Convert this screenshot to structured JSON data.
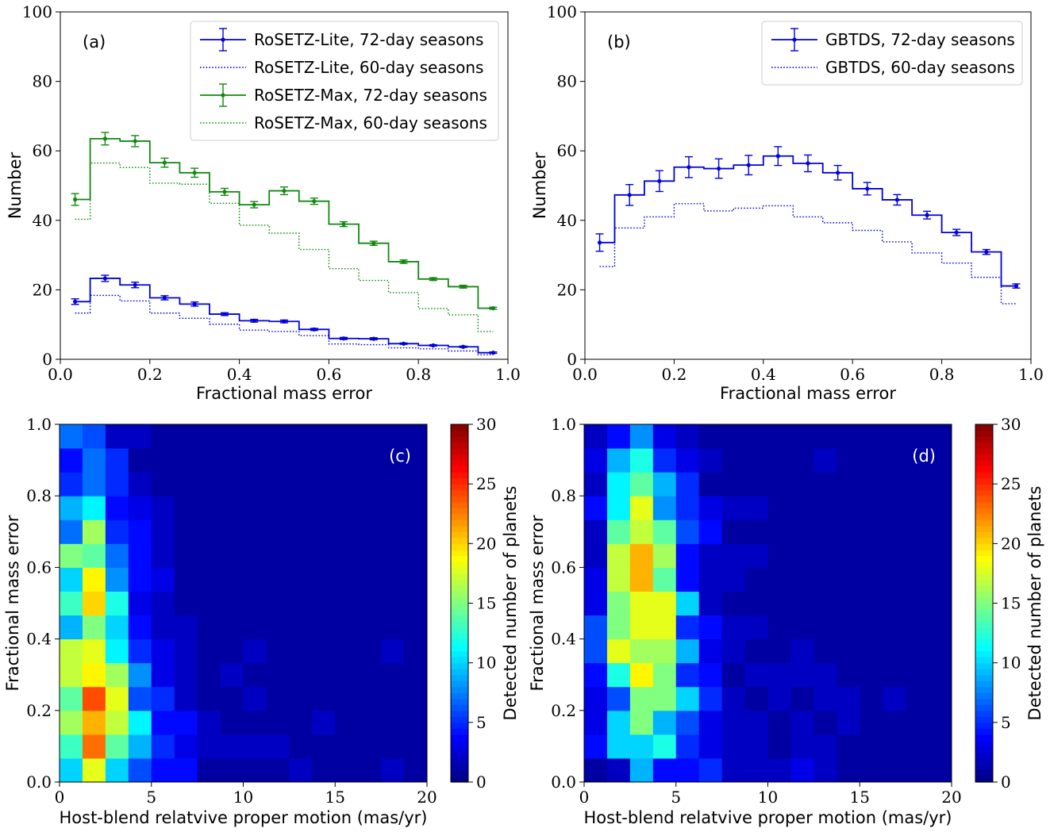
{
  "chart_data": [
    {
      "panel": "(a)",
      "type": "line",
      "step": true,
      "xlabel": "Fractional mass error",
      "ylabel": "Number",
      "xlim": [
        0,
        1
      ],
      "ylim": [
        0,
        100
      ],
      "xticks": [
        "0.0",
        "0.2",
        "0.4",
        "0.6",
        "0.8",
        "1.0"
      ],
      "yticks": [
        "0",
        "20",
        "40",
        "60",
        "80",
        "100"
      ],
      "legend_position": "top-right",
      "grid": false,
      "bin_edges": [
        0.0,
        0.0667,
        0.1333,
        0.2,
        0.2667,
        0.3333,
        0.4,
        0.4667,
        0.5333,
        0.6,
        0.6667,
        0.7333,
        0.8,
        0.8667,
        0.9333,
        1.0
      ],
      "x": [
        0.033,
        0.1,
        0.167,
        0.233,
        0.3,
        0.367,
        0.433,
        0.5,
        0.567,
        0.633,
        0.7,
        0.767,
        0.833,
        0.9,
        0.967
      ],
      "series": [
        {
          "name": "RoSETZ-Lite, 72-day seasons",
          "color": "#0000dd",
          "style": "solid",
          "errorbars": true,
          "values": [
            16.6,
            23.3,
            21.4,
            17.7,
            15.9,
            13.0,
            11.1,
            10.9,
            8.6,
            6.0,
            5.9,
            4.5,
            4.0,
            3.6,
            1.9
          ],
          "errors": [
            0.8,
            0.9,
            0.8,
            0.6,
            0.6,
            0.4,
            0.4,
            0.4,
            0.3,
            0.3,
            0.3,
            0.2,
            0.2,
            0.2,
            0.2
          ]
        },
        {
          "name": "RoSETZ-Lite, 60-day seasons",
          "color": "#0000dd",
          "style": "dotted",
          "errorbars": false,
          "values": [
            13.3,
            18.4,
            16.8,
            13.3,
            11.8,
            10.1,
            8.4,
            8.0,
            6.8,
            4.4,
            4.2,
            3.3,
            3.0,
            2.4,
            1.3
          ]
        },
        {
          "name": "RoSETZ-Max, 72-day seasons",
          "color": "#118811",
          "style": "solid",
          "errorbars": true,
          "values": [
            46.0,
            63.5,
            62.8,
            56.6,
            53.7,
            48.2,
            44.5,
            48.5,
            45.5,
            38.9,
            33.4,
            28.1,
            23.1,
            20.9,
            14.7
          ],
          "errors": [
            1.7,
            1.8,
            1.6,
            1.3,
            1.3,
            1.0,
            0.9,
            1.1,
            0.9,
            0.7,
            0.6,
            0.5,
            0.4,
            0.4,
            0.3
          ]
        },
        {
          "name": "RoSETZ-Max, 60-day seasons",
          "color": "#118811",
          "style": "dotted",
          "errorbars": false,
          "values": [
            40.3,
            56.5,
            55.2,
            50.7,
            50.4,
            44.9,
            38.6,
            36.3,
            31.6,
            26.1,
            22.7,
            19.2,
            14.6,
            12.8,
            8.0
          ]
        }
      ]
    },
    {
      "panel": "(b)",
      "type": "line",
      "step": true,
      "xlabel": "Fractional mass error",
      "ylabel": "Number",
      "xlim": [
        0,
        1
      ],
      "ylim": [
        0,
        100
      ],
      "xticks": [
        "0.0",
        "0.2",
        "0.4",
        "0.6",
        "0.8",
        "1.0"
      ],
      "yticks": [
        "0",
        "20",
        "40",
        "60",
        "80",
        "100"
      ],
      "legend_position": "top-right",
      "grid": false,
      "bin_edges": [
        0.0,
        0.0667,
        0.1333,
        0.2,
        0.2667,
        0.3333,
        0.4,
        0.4667,
        0.5333,
        0.6,
        0.6667,
        0.7333,
        0.8,
        0.8667,
        0.9333,
        1.0
      ],
      "x": [
        0.033,
        0.1,
        0.167,
        0.233,
        0.3,
        0.367,
        0.433,
        0.5,
        0.567,
        0.633,
        0.7,
        0.767,
        0.833,
        0.9,
        0.967
      ],
      "series": [
        {
          "name": "GBTDS, 72-day seasons",
          "color": "#0000dd",
          "style": "solid",
          "errorbars": true,
          "values": [
            33.6,
            47.3,
            51.3,
            55.3,
            54.9,
            55.9,
            58.5,
            56.4,
            53.7,
            49.1,
            45.9,
            41.5,
            36.5,
            30.9,
            21.1
          ],
          "errors": [
            2.5,
            3.0,
            3.0,
            3.0,
            2.8,
            2.8,
            2.7,
            2.4,
            2.1,
            1.8,
            1.5,
            1.1,
            0.9,
            0.7,
            0.6
          ]
        },
        {
          "name": "GBTDS, 60-day seasons",
          "color": "#0000dd",
          "style": "dotted",
          "errorbars": false,
          "values": [
            26.7,
            37.8,
            41.0,
            44.8,
            42.7,
            43.5,
            44.2,
            41.0,
            39.3,
            37.1,
            33.8,
            30.6,
            27.7,
            23.6,
            16.0
          ]
        }
      ]
    },
    {
      "panel": "(c)",
      "type": "heatmap",
      "xlabel": "Host-blend relatvive proper motion (mas/yr)",
      "ylabel": "Fractional mass error",
      "colorbar_label": "Detected number of planets",
      "colormap": "jet",
      "zlim": [
        0,
        30
      ],
      "xlim": [
        0,
        20
      ],
      "ylim": [
        0,
        1
      ],
      "xticks": [
        "0",
        "5",
        "10",
        "15",
        "20"
      ],
      "yticks": [
        "0.0",
        "0.2",
        "0.4",
        "0.6",
        "0.8",
        "1.0"
      ],
      "colorbar_ticks": [
        "0",
        "5",
        "10",
        "15",
        "20",
        "25",
        "30"
      ],
      "x_bins": 16,
      "y_bins": 15,
      "rows_bottom_to_top": [
        [
          10,
          18,
          10,
          6,
          4,
          4,
          1,
          1,
          1,
          1,
          2,
          1,
          1,
          1,
          2,
          1
        ],
        [
          13,
          23,
          14,
          9,
          5,
          3,
          2,
          2,
          2,
          2,
          1,
          1,
          1,
          1,
          1,
          1
        ],
        [
          16,
          21,
          17,
          11,
          4,
          4,
          2,
          1,
          1,
          1,
          1,
          2,
          1,
          1,
          1,
          1
        ],
        [
          14,
          24,
          18,
          6,
          5,
          2,
          1,
          1,
          2,
          1,
          1,
          1,
          1,
          1,
          1,
          1
        ],
        [
          17,
          19,
          16,
          8,
          3,
          2,
          1,
          2,
          1,
          1,
          1,
          1,
          1,
          1,
          1,
          1
        ],
        [
          17,
          18,
          11,
          5,
          3,
          2,
          1,
          1,
          2,
          1,
          1,
          1,
          1,
          1,
          2,
          1
        ],
        [
          9,
          15,
          10,
          4,
          2,
          2,
          1,
          1,
          1,
          1,
          1,
          1,
          1,
          1,
          1,
          1
        ],
        [
          13,
          20,
          12,
          3,
          2,
          1,
          1,
          1,
          1,
          1,
          1,
          1,
          1,
          1,
          1,
          1
        ],
        [
          10,
          19,
          8,
          4,
          3,
          1,
          1,
          1,
          1,
          1,
          1,
          1,
          1,
          1,
          1,
          1
        ],
        [
          15,
          14,
          7,
          4,
          2,
          1,
          1,
          1,
          1,
          1,
          1,
          1,
          1,
          1,
          1,
          1
        ],
        [
          7,
          16,
          5,
          4,
          2,
          1,
          1,
          1,
          1,
          1,
          1,
          1,
          1,
          1,
          1,
          1
        ],
        [
          9,
          11,
          4,
          3,
          2,
          1,
          1,
          1,
          1,
          1,
          1,
          1,
          1,
          1,
          1,
          1
        ],
        [
          5,
          7,
          5,
          2,
          1,
          1,
          1,
          1,
          1,
          1,
          1,
          1,
          1,
          1,
          1,
          1
        ],
        [
          4,
          7,
          5,
          1,
          1,
          1,
          1,
          1,
          1,
          1,
          1,
          1,
          1,
          1,
          1,
          1
        ],
        [
          7,
          6,
          2,
          2,
          1,
          1,
          1,
          1,
          1,
          1,
          1,
          1,
          1,
          1,
          1,
          1
        ]
      ]
    },
    {
      "panel": "(d)",
      "type": "heatmap",
      "xlabel": "Host-blend relatvive proper motion (mas/yr)",
      "ylabel": "Fractional mass error",
      "colorbar_label": "Detected number of planets",
      "colormap": "jet",
      "zlim": [
        0,
        30
      ],
      "xlim": [
        0,
        20
      ],
      "ylim": [
        0,
        1
      ],
      "xticks": [
        "0",
        "5",
        "10",
        "15",
        "20"
      ],
      "yticks": [
        "0.0",
        "0.2",
        "0.4",
        "0.6",
        "0.8",
        "1.0"
      ],
      "colorbar_ticks": [
        "0",
        "5",
        "10",
        "15",
        "20",
        "25",
        "30"
      ],
      "x_bins": 16,
      "y_bins": 15,
      "rows_bottom_to_top": [
        [
          1,
          2,
          9,
          4,
          4,
          5,
          2,
          2,
          2,
          3,
          2,
          1,
          1,
          1,
          1,
          1
        ],
        [
          4,
          10,
          10,
          12,
          5,
          3,
          2,
          2,
          1,
          2,
          2,
          1,
          1,
          1,
          1,
          1
        ],
        [
          3,
          10,
          15,
          9,
          6,
          3,
          2,
          2,
          1,
          2,
          1,
          2,
          1,
          1,
          1,
          1
        ],
        [
          3,
          6,
          15,
          15,
          10,
          5,
          2,
          1,
          2,
          1,
          2,
          2,
          1,
          2,
          1,
          1
        ],
        [
          4,
          12,
          19,
          15,
          5,
          4,
          1,
          2,
          2,
          2,
          2,
          1,
          1,
          1,
          1,
          1
        ],
        [
          6,
          18,
          16,
          16,
          9,
          3,
          2,
          1,
          1,
          2,
          1,
          1,
          1,
          1,
          1,
          1
        ],
        [
          6,
          15,
          18,
          18,
          5,
          4,
          2,
          2,
          1,
          1,
          1,
          1,
          1,
          1,
          1,
          1
        ],
        [
          3,
          15,
          18,
          18,
          10,
          2,
          1,
          1,
          1,
          1,
          1,
          1,
          1,
          1,
          1,
          1
        ],
        [
          3,
          17,
          21,
          14,
          4,
          2,
          2,
          1,
          1,
          1,
          1,
          1,
          1,
          1,
          1,
          1
        ],
        [
          2,
          17,
          21,
          16,
          4,
          2,
          2,
          2,
          1,
          1,
          1,
          1,
          1,
          1,
          1,
          1
        ],
        [
          2,
          14,
          17,
          14,
          6,
          4,
          1,
          1,
          1,
          1,
          1,
          1,
          1,
          1,
          1,
          1
        ],
        [
          4,
          11,
          18,
          8,
          5,
          3,
          2,
          2,
          1,
          1,
          1,
          1,
          1,
          1,
          1,
          1
        ],
        [
          2,
          11,
          14,
          9,
          5,
          1,
          1,
          1,
          1,
          1,
          1,
          1,
          1,
          1,
          1,
          1
        ],
        [
          3,
          9,
          12,
          5,
          3,
          2,
          1,
          1,
          1,
          1,
          2,
          1,
          1,
          1,
          1,
          1
        ],
        [
          2,
          4,
          8,
          3,
          2,
          1,
          1,
          1,
          1,
          1,
          1,
          1,
          1,
          1,
          1,
          1
        ]
      ]
    }
  ]
}
